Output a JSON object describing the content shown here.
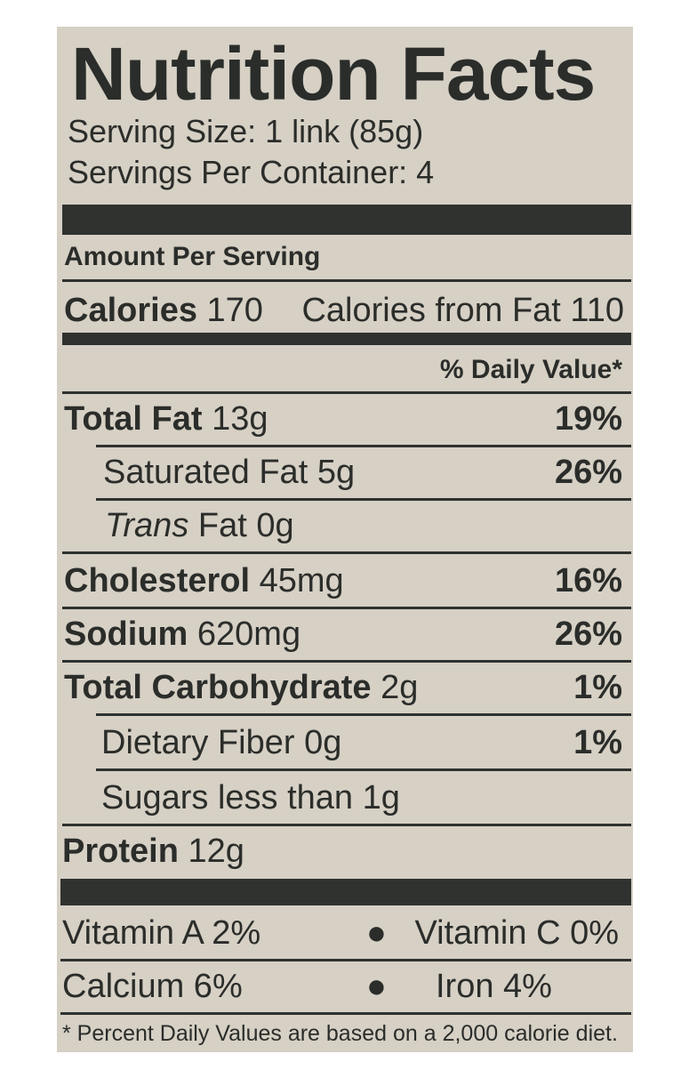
{
  "title": "Nutrition Facts",
  "serving_size": "Serving Size: 1 link (85g)",
  "servings_per_container": "Servings Per Container: 4",
  "amount_per_serving": "Amount Per Serving",
  "calories": {
    "label": "Calories",
    "value": "170",
    "from_fat": "Calories from Fat 110"
  },
  "daily_value_header": "% Daily Value*",
  "nutrients": [
    {
      "name": "Total Fat",
      "amount": "13g",
      "dv": "19%"
    },
    {
      "name": "Saturated Fat",
      "amount": "5g",
      "dv": "26%"
    },
    {
      "name": "Trans",
      "suffix": "Fat 0g",
      "dv": ""
    },
    {
      "name": "Cholesterol",
      "amount": "45mg",
      "dv": "16%"
    },
    {
      "name": "Sodium",
      "amount": "620mg",
      "dv": "26%"
    },
    {
      "name": "Total Carbohydrate",
      "amount": "2g",
      "dv": "1%"
    },
    {
      "name": "Dietary Fiber",
      "amount": "0g",
      "dv": "1%"
    },
    {
      "name": "Sugars less than",
      "amount": "1g",
      "dv": ""
    },
    {
      "name": "Protein",
      "amount": "12g",
      "dv": ""
    }
  ],
  "vitamins": {
    "vitamin_a": "Vitamin A 2%",
    "vitamin_c": "Vitamin C 0%",
    "calcium": "Calcium 6%",
    "iron": "Iron 4%",
    "bullet": "●"
  },
  "footnote": "* Percent Daily Values are based on a 2,000 calorie diet."
}
